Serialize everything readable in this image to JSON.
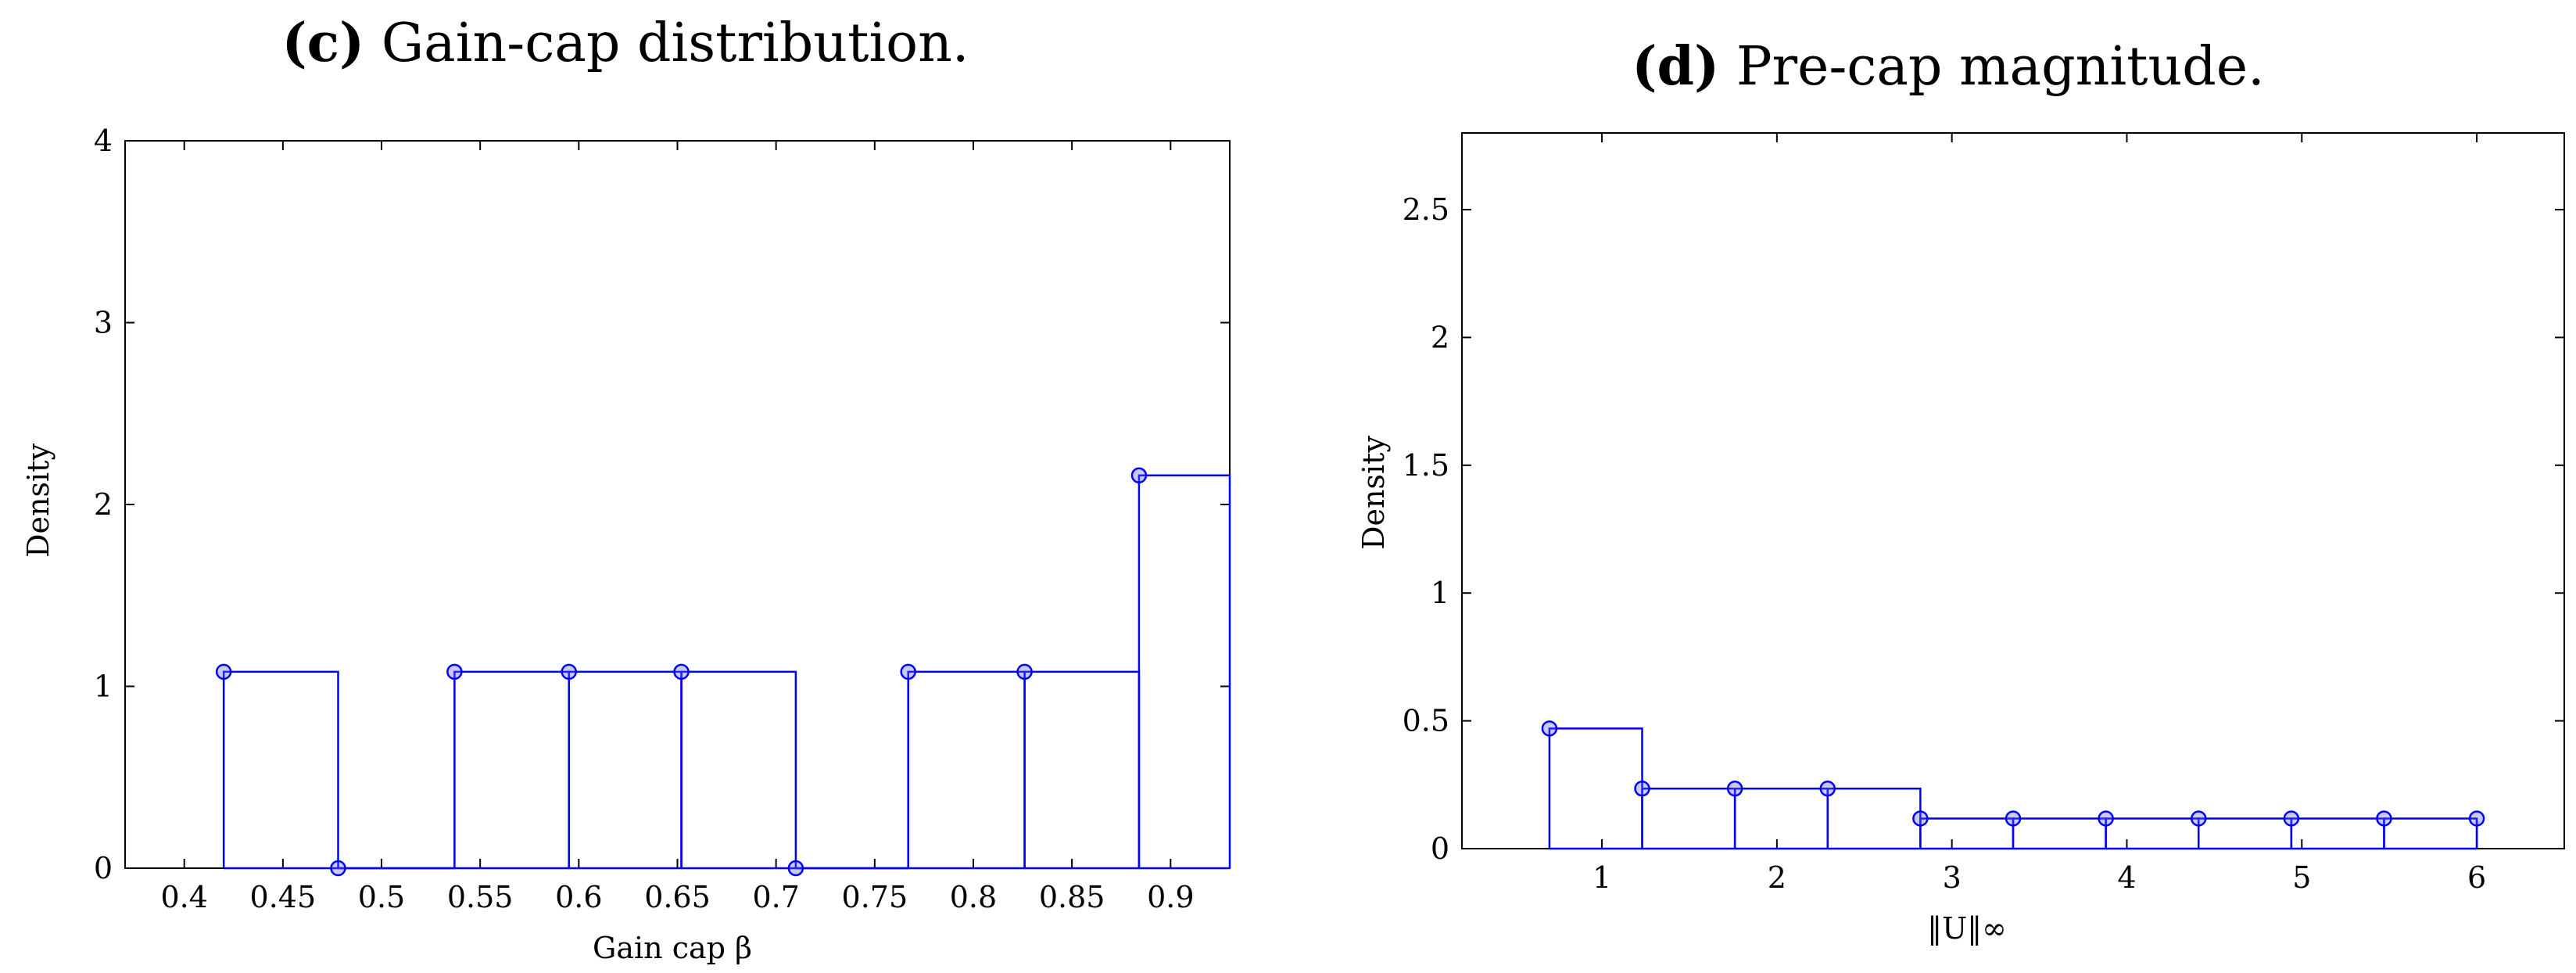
{
  "chart_data": [
    {
      "type": "bar",
      "panel_label": "(c)",
      "title": "Gain-cap distribution.",
      "xlabel": "Gain cap β",
      "ylabel": "Density",
      "xlim": [
        0.37,
        0.93
      ],
      "ylim": [
        0,
        4
      ],
      "xticks": [
        0.4,
        0.45,
        0.5,
        0.55,
        0.6,
        0.65,
        0.7,
        0.75,
        0.8,
        0.85,
        0.9
      ],
      "yticks": [
        0,
        1,
        2,
        3,
        4
      ],
      "bins": [
        {
          "left": 0.42,
          "right": 0.478,
          "density": 1.08
        },
        {
          "left": 0.478,
          "right": 0.537,
          "density": 0
        },
        {
          "left": 0.537,
          "right": 0.595,
          "density": 1.08
        },
        {
          "left": 0.595,
          "right": 0.652,
          "density": 1.08
        },
        {
          "left": 0.652,
          "right": 0.71,
          "density": 1.08
        },
        {
          "left": 0.71,
          "right": 0.767,
          "density": 0
        },
        {
          "left": 0.767,
          "right": 0.826,
          "density": 1.08
        },
        {
          "left": 0.826,
          "right": 0.884,
          "density": 1.08
        },
        {
          "left": 0.884,
          "right": 0.93,
          "density": 2.16
        }
      ],
      "color": "#0000ff"
    },
    {
      "type": "bar",
      "panel_label": "(d)",
      "title": "Pre-cap magnitude.",
      "xlabel": "‖U‖∞",
      "ylabel": "Density",
      "xlim": [
        0.2,
        6.5
      ],
      "ylim": [
        0,
        2.8
      ],
      "xticks": [
        1,
        2,
        3,
        4,
        5,
        6
      ],
      "yticks": [
        0,
        0.5,
        1,
        1.5,
        2,
        2.5
      ],
      "bins": [
        {
          "left": 0.7,
          "right": 1.23,
          "density": 0.47
        },
        {
          "left": 1.23,
          "right": 1.76,
          "density": 0.235
        },
        {
          "left": 1.76,
          "right": 2.29,
          "density": 0.235
        },
        {
          "left": 2.29,
          "right": 2.82,
          "density": 0.235
        },
        {
          "left": 2.82,
          "right": 3.35,
          "density": 0.118
        },
        {
          "left": 3.35,
          "right": 3.88,
          "density": 0.118
        },
        {
          "left": 3.88,
          "right": 4.41,
          "density": 0.118
        },
        {
          "left": 4.41,
          "right": 4.94,
          "density": 0.118
        },
        {
          "left": 4.94,
          "right": 5.47,
          "density": 0.118
        },
        {
          "left": 5.47,
          "right": 6.0,
          "density": 0.118
        },
        {
          "left": 6.0,
          "right": 6.0,
          "density": 0.118
        }
      ],
      "color": "#0000ff"
    }
  ]
}
